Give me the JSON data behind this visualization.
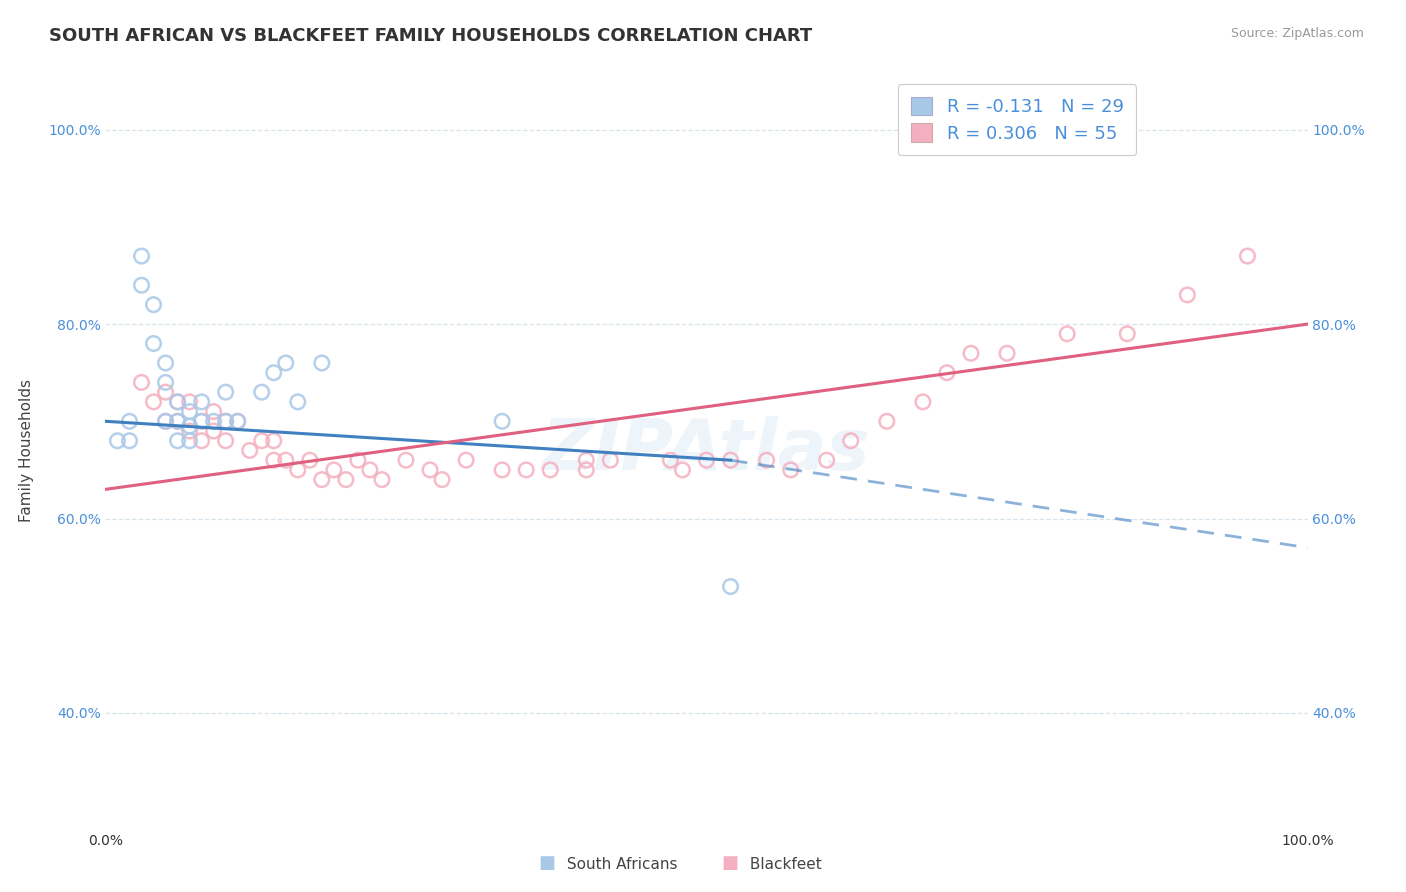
{
  "title": "SOUTH AFRICAN VS BLACKFEET FAMILY HOUSEHOLDS CORRELATION CHART",
  "source": "Source: ZipAtlas.com",
  "ylabel": "Family Households",
  "xlim": [
    0.0,
    1.0
  ],
  "ylim": [
    0.28,
    1.06
  ],
  "yticks": [
    0.4,
    0.6,
    0.8,
    1.0
  ],
  "ytick_labels": [
    "40.0%",
    "60.0%",
    "80.0%",
    "100.0%"
  ],
  "color_blue": "#a8c8e8",
  "color_blue_edge": "#a8c8e8",
  "color_pink": "#f4b0c0",
  "color_pink_edge": "#f4b0c0",
  "line_blue": "#4080c0",
  "line_pink": "#e06080",
  "background_color": "#ffffff",
  "grid_color": "#d8e4ec",
  "legend_r1": "R = -0.131",
  "legend_n1": "N = 29",
  "legend_r2": "R = 0.306",
  "legend_n2": "N = 55",
  "title_fontsize": 13,
  "axis_label_fontsize": 11,
  "tick_fontsize": 10,
  "legend_fontsize": 13,
  "sa_x": [
    0.01,
    0.02,
    0.02,
    0.03,
    0.03,
    0.04,
    0.04,
    0.05,
    0.05,
    0.05,
    0.06,
    0.06,
    0.06,
    0.07,
    0.07,
    0.07,
    0.08,
    0.08,
    0.09,
    0.1,
    0.1,
    0.11,
    0.13,
    0.14,
    0.15,
    0.16,
    0.18,
    0.33,
    0.52
  ],
  "sa_y": [
    0.68,
    0.7,
    0.68,
    0.87,
    0.84,
    0.82,
    0.78,
    0.76,
    0.74,
    0.7,
    0.72,
    0.7,
    0.68,
    0.71,
    0.695,
    0.68,
    0.72,
    0.7,
    0.7,
    0.73,
    0.7,
    0.7,
    0.73,
    0.75,
    0.76,
    0.72,
    0.76,
    0.7,
    0.53
  ],
  "bf_x": [
    0.03,
    0.04,
    0.05,
    0.05,
    0.06,
    0.06,
    0.07,
    0.07,
    0.08,
    0.08,
    0.09,
    0.09,
    0.1,
    0.1,
    0.11,
    0.12,
    0.13,
    0.14,
    0.14,
    0.15,
    0.16,
    0.17,
    0.18,
    0.19,
    0.2,
    0.21,
    0.22,
    0.23,
    0.25,
    0.27,
    0.28,
    0.3,
    0.33,
    0.35,
    0.37,
    0.4,
    0.4,
    0.42,
    0.47,
    0.48,
    0.5,
    0.52,
    0.55,
    0.57,
    0.6,
    0.62,
    0.65,
    0.68,
    0.7,
    0.72,
    0.75,
    0.8,
    0.85,
    0.9,
    0.95
  ],
  "bf_y": [
    0.74,
    0.72,
    0.7,
    0.73,
    0.72,
    0.7,
    0.69,
    0.72,
    0.68,
    0.7,
    0.71,
    0.69,
    0.7,
    0.68,
    0.7,
    0.67,
    0.68,
    0.66,
    0.68,
    0.66,
    0.65,
    0.66,
    0.64,
    0.65,
    0.64,
    0.66,
    0.65,
    0.64,
    0.66,
    0.65,
    0.64,
    0.66,
    0.65,
    0.65,
    0.65,
    0.66,
    0.65,
    0.66,
    0.66,
    0.65,
    0.66,
    0.66,
    0.66,
    0.65,
    0.66,
    0.68,
    0.7,
    0.72,
    0.75,
    0.77,
    0.77,
    0.79,
    0.79,
    0.83,
    0.87
  ],
  "blue_line_x0": 0.0,
  "blue_line_y0": 0.7,
  "blue_line_x1": 0.52,
  "blue_line_y1": 0.66,
  "blue_line_x2": 1.0,
  "blue_line_y2": 0.57,
  "pink_line_x0": 0.0,
  "pink_line_y0": 0.63,
  "pink_line_x1": 1.0,
  "pink_line_y1": 0.8
}
